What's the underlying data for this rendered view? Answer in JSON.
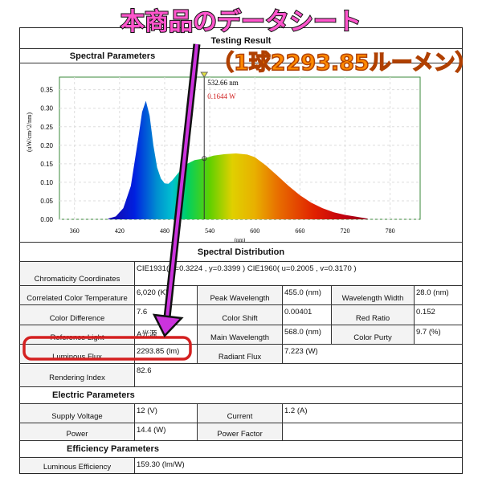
{
  "overlay": {
    "title": "本商品のデータシート",
    "subtitle": "（1球2293.85ルーメン）",
    "title_color": "#ff55cc",
    "subtitle_color": "#ff8a00",
    "highlight_color": "#d42020",
    "arrow_color": "#cc33dd"
  },
  "header": {
    "title": "Testing Result",
    "spectral_parameters": "Spectral Parameters"
  },
  "chart_data": {
    "type": "area",
    "xlabel": "(nm)",
    "ylabel": "(uW/cm^2/nm)",
    "xlim": [
      340,
      820
    ],
    "ylim": [
      0,
      0.384
    ],
    "xticks": [
      360,
      420,
      480,
      540,
      600,
      660,
      720,
      780
    ],
    "yticks": [
      "0.00",
      "0.05",
      "0.10",
      "0.15",
      "0.20",
      "0.25",
      "0.30",
      "0.35"
    ],
    "grid": true,
    "x": [
      405,
      415,
      425,
      435,
      445,
      450,
      455,
      460,
      465,
      470,
      475,
      480,
      485,
      490,
      500,
      510,
      520,
      532.66,
      545,
      560,
      575,
      590,
      600,
      615,
      630,
      645,
      660,
      675,
      690,
      705,
      720,
      735,
      750
    ],
    "y": [
      0.002,
      0.008,
      0.03,
      0.09,
      0.22,
      0.29,
      0.32,
      0.28,
      0.2,
      0.14,
      0.11,
      0.097,
      0.096,
      0.105,
      0.13,
      0.15,
      0.16,
      0.1644,
      0.172,
      0.176,
      0.178,
      0.175,
      0.168,
      0.145,
      0.118,
      0.09,
      0.065,
      0.045,
      0.03,
      0.019,
      0.012,
      0.007,
      0.002
    ],
    "cursor": {
      "wavelength": "532.66 nm",
      "value": "0.1644 W"
    }
  },
  "table": {
    "spectral_distribution": "Spectral Distribution",
    "chromaticity_label": "Chromaticity Coordinates",
    "chromaticity_value": "CIE1931( x=0.3224 , y=0.3399 )    CIE1960( u=0.2005 , v=0.3170 )",
    "rows": [
      [
        {
          "l": "Correlated Color Temperature",
          "v": "6,020 (K)"
        },
        {
          "l": "Peak Wavelength",
          "v": "455.0 (nm)"
        },
        {
          "l": "Wavelength Width",
          "v": "28.0 (nm)"
        }
      ],
      [
        {
          "l": "Color Difference",
          "v": "7.6"
        },
        {
          "l": "Color Shift",
          "v": "0.00401"
        },
        {
          "l": "Red Ratio",
          "v": "0.152"
        }
      ],
      [
        {
          "l": "Reference Light",
          "v": "A光源"
        },
        {
          "l": "Main Wavelength",
          "v": "568.0 (nm)"
        },
        {
          "l": "Color Purty",
          "v": "9.7 (%)"
        }
      ]
    ],
    "luminous_flux": {
      "l": "Luminous Flux",
      "v": "2293.85 (lm)"
    },
    "radiant_flux": {
      "l": "Radiant Flux",
      "v": "7.223 (W)"
    },
    "rendering_index": {
      "l": "Rendering Index",
      "v": "82.6"
    },
    "electric_parameters": "Electric Parameters",
    "supply_voltage": {
      "l": "Supply Voltage",
      "v": "12 (V)"
    },
    "current": {
      "l": "Current",
      "v": "1.2 (A)"
    },
    "power": {
      "l": "Power",
      "v": "14.4 (W)"
    },
    "power_factor": {
      "l": "Power Factor",
      "v": ""
    },
    "efficiency_parameters": "Efficiency Parameters",
    "luminous_efficiency": {
      "l": "Luminous Efficiency",
      "v": "159.30 (lm/W)"
    }
  }
}
